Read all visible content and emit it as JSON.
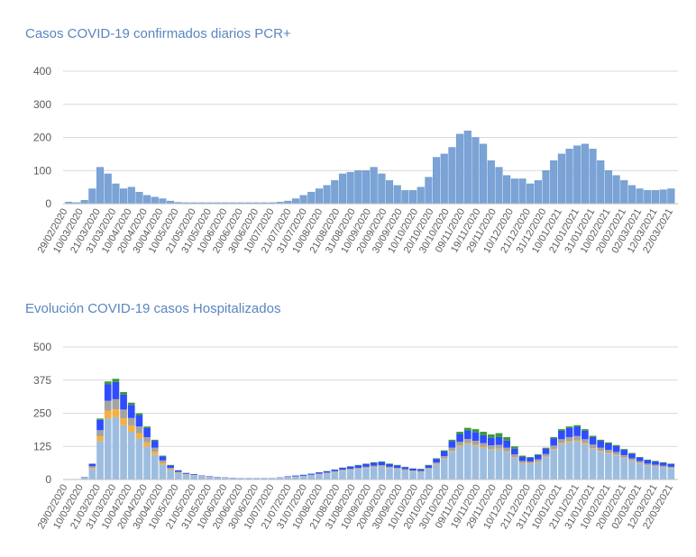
{
  "chart_data": [
    {
      "type": "bar",
      "title": "Casos COVID-19 confirmados diarios PCR+",
      "xlabel": "",
      "ylabel": "",
      "ylim": [
        0,
        400
      ],
      "yticks": [
        "0",
        "100",
        "200",
        "300",
        "400"
      ],
      "grid": true,
      "bin_days": 5,
      "first_date": "29/02/2020",
      "xtick_labels": [
        "29/02/2020",
        "10/03/2020",
        "21/03/2020",
        "31/03/2020",
        "10/04/2020",
        "20/04/2020",
        "30/04/2020",
        "10/05/2020",
        "21/05/2020",
        "31/05/2020",
        "10/06/2020",
        "20/06/2020",
        "30/06/2020",
        "10/07/2020",
        "21/07/2020",
        "31/07/2020",
        "10/08/2020",
        "21/08/2020",
        "31/08/2020",
        "10/09/2020",
        "20/09/2020",
        "30/09/2020",
        "10/10/2020",
        "20/10/2020",
        "30/10/2020",
        "09/11/2020",
        "19/11/2020",
        "29/11/2020",
        "10/12/2020",
        "21/12/2020",
        "31/12/2020",
        "10/01/2021",
        "21/01/2021",
        "31/01/2021",
        "10/02/2021",
        "20/02/2021",
        "02/03/2021",
        "12/03/2021",
        "22/03/2021"
      ],
      "color": "#7ba3d6",
      "values": [
        5,
        3,
        10,
        45,
        110,
        90,
        60,
        45,
        50,
        35,
        25,
        20,
        15,
        8,
        4,
        3,
        3,
        3,
        3,
        3,
        3,
        3,
        3,
        3,
        3,
        3,
        3,
        5,
        8,
        15,
        25,
        35,
        45,
        55,
        70,
        90,
        95,
        100,
        100,
        110,
        90,
        70,
        55,
        40,
        40,
        50,
        80,
        140,
        150,
        170,
        210,
        220,
        200,
        180,
        130,
        110,
        85,
        75,
        75,
        60,
        70,
        100,
        130,
        150,
        165,
        175,
        180,
        165,
        130,
        100,
        85,
        70,
        55,
        45,
        40,
        40,
        42,
        45
      ]
    },
    {
      "type": "bar",
      "stacked": true,
      "title": "Evolución COVID-19 casos  Hospitalizados",
      "xlabel": "",
      "ylabel": "",
      "ylim": [
        0,
        500
      ],
      "yticks": [
        "0",
        "125",
        "250",
        "375",
        "500"
      ],
      "grid": true,
      "bin_days": 5,
      "first_date": "29/02/2020",
      "xtick_labels": [
        "29/02/2020",
        "10/03/2020",
        "21/03/2020",
        "31/03/2020",
        "10/04/2020",
        "20/04/2020",
        "30/04/2020",
        "10/05/2020",
        "21/05/2020",
        "31/05/2020",
        "10/06/2020",
        "20/06/2020",
        "30/06/2020",
        "10/07/2020",
        "21/07/2020",
        "31/07/2020",
        "10/08/2020",
        "21/08/2020",
        "31/08/2020",
        "10/09/2020",
        "20/09/2020",
        "30/09/2020",
        "10/10/2020",
        "20/10/2020",
        "30/10/2020",
        "09/11/2020",
        "19/11/2020",
        "29/11/2020",
        "10/12/2020",
        "21/12/2020",
        "31/12/2020",
        "10/01/2021",
        "21/01/2021",
        "31/01/2021",
        "10/02/2021",
        "20/02/2021",
        "02/03/2021",
        "12/03/2021",
        "22/03/2021"
      ],
      "series": [
        {
          "color": "#9dbde0",
          "values": [
            0,
            2,
            8,
            40,
            145,
            230,
            235,
            205,
            180,
            155,
            124,
            93,
            56,
            36,
            24,
            18,
            15,
            11,
            9,
            8,
            6,
            5,
            4,
            4,
            4,
            4,
            4,
            6,
            9,
            11,
            13,
            16,
            19,
            22,
            27,
            32,
            35,
            39,
            42,
            46,
            48,
            42,
            39,
            34,
            30,
            28,
            39,
            56,
            77,
            105,
            124,
            133,
            127,
            119,
            112,
            114,
            104,
            82,
            61,
            59,
            66,
            84,
            112,
            133,
            140,
            144,
            133,
            116,
            105,
            98,
            91,
            81,
            70,
            60,
            53,
            49,
            46,
            42
          ]
        },
        {
          "color": "#f5b042",
          "values": [
            0,
            0,
            0,
            4,
            18,
            30,
            30,
            26,
            23,
            20,
            16,
            12,
            7,
            3,
            2,
            1,
            1,
            1,
            0,
            0,
            0,
            0,
            0,
            0,
            0,
            0,
            0,
            0,
            0,
            0,
            0,
            0,
            1,
            1,
            1,
            1,
            1,
            1,
            1,
            1,
            1,
            1,
            1,
            1,
            1,
            1,
            1,
            2,
            2,
            3,
            4,
            4,
            4,
            4,
            3,
            3,
            3,
            3,
            2,
            2,
            2,
            2,
            3,
            4,
            4,
            4,
            4,
            3,
            3,
            3,
            3,
            2,
            2,
            2,
            1,
            1,
            1,
            1
          ]
        },
        {
          "color": "#a3a3a3",
          "values": [
            0,
            0,
            1,
            6,
            23,
            37,
            38,
            33,
            29,
            25,
            20,
            15,
            9,
            5,
            3,
            2,
            1,
            1,
            1,
            1,
            1,
            0,
            0,
            0,
            0,
            0,
            0,
            1,
            1,
            1,
            1,
            2,
            2,
            3,
            3,
            4,
            4,
            4,
            5,
            5,
            5,
            5,
            4,
            4,
            3,
            3,
            4,
            6,
            9,
            12,
            14,
            16,
            15,
            14,
            14,
            14,
            13,
            10,
            7,
            7,
            8,
            10,
            13,
            15,
            16,
            16,
            15,
            13,
            12,
            11,
            10,
            9,
            8,
            7,
            6,
            6,
            5,
            5
          ]
        },
        {
          "color": "#2f4cff",
          "values": [
            0,
            0,
            1,
            9,
            39,
            62,
            65,
            56,
            49,
            43,
            34,
            26,
            15,
            9,
            5,
            3,
            3,
            2,
            2,
            1,
            1,
            1,
            1,
            1,
            1,
            1,
            1,
            1,
            2,
            3,
            3,
            4,
            5,
            5,
            6,
            7,
            9,
            9,
            10,
            11,
            12,
            10,
            9,
            8,
            7,
            7,
            9,
            14,
            19,
            25,
            30,
            32,
            32,
            30,
            28,
            29,
            27,
            21,
            15,
            14,
            16,
            20,
            27,
            32,
            34,
            35,
            32,
            28,
            26,
            24,
            22,
            20,
            17,
            14,
            13,
            12,
            11,
            10
          ]
        },
        {
          "color": "#3a9a3a",
          "values": [
            0,
            0,
            0,
            1,
            5,
            11,
            12,
            10,
            9,
            7,
            6,
            4,
            3,
            2,
            1,
            1,
            0,
            0,
            0,
            0,
            0,
            0,
            0,
            0,
            0,
            0,
            0,
            0,
            0,
            0,
            1,
            0,
            0,
            1,
            1,
            1,
            1,
            2,
            2,
            2,
            2,
            2,
            2,
            1,
            1,
            1,
            2,
            2,
            3,
            5,
            8,
            10,
            12,
            13,
            13,
            15,
            13,
            9,
            5,
            3,
            3,
            4,
            5,
            6,
            6,
            6,
            6,
            5,
            4,
            4,
            4,
            3,
            3,
            2,
            2,
            2,
            2,
            2
          ]
        }
      ]
    }
  ]
}
